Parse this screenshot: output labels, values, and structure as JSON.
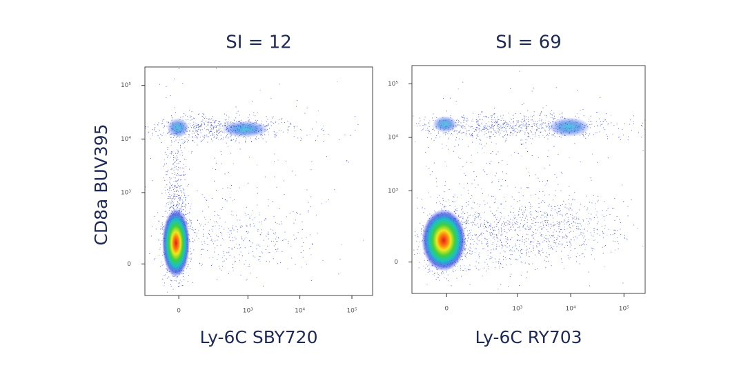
{
  "chart_data": [
    {
      "type": "scatter",
      "title": "SI = 12",
      "xlabel": "Ly-6C  SBY720",
      "ylabel": "CD8a BUV395",
      "xlim": [
        -200,
        250000
      ],
      "ylim": [
        -170,
        220000
      ],
      "xticks": [
        0,
        {
          "value": 1000,
          "label": "10³"
        },
        {
          "value": 10000,
          "label": "10⁴"
        },
        {
          "value": 100000,
          "label": "10⁵"
        }
      ],
      "yticks": [
        0,
        {
          "value": 1000,
          "label": "10³"
        },
        {
          "value": 10000,
          "label": "10⁴"
        },
        {
          "value": 100000,
          "label": "10⁵"
        }
      ]
    },
    {
      "type": "scatter",
      "title": "SI = 69",
      "xlabel": "Ly-6C  RY703",
      "xlim": [
        -200,
        250000
      ],
      "ylim": [
        -170,
        220000
      ],
      "xticks": [
        0,
        {
          "value": 1000,
          "label": "10³"
        },
        {
          "value": 10000,
          "label": "10⁴"
        },
        {
          "value": 100000,
          "label": "10⁵"
        }
      ],
      "yticks": [
        0,
        {
          "value": 1000,
          "label": "10³"
        },
        {
          "value": 10000,
          "label": "10⁴"
        },
        {
          "value": 100000,
          "label": "10⁵"
        }
      ]
    }
  ]
}
